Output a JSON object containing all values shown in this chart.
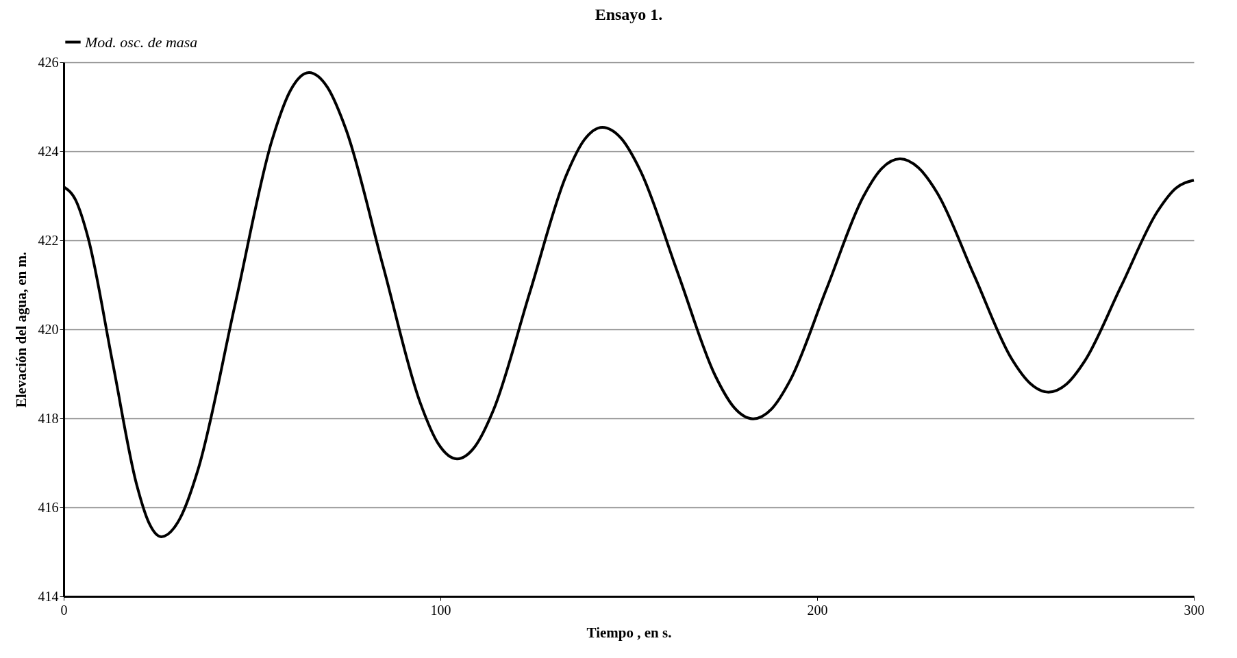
{
  "chart_data": {
    "type": "line",
    "title": "Ensayo 1.",
    "xlabel": "Tiempo , en s.",
    "ylabel": "Elevación del agua, en m.",
    "x": [
      0,
      3.2,
      6.5,
      12.95,
      19.4,
      22.7,
      25.9,
      30.8,
      35.7,
      45.5,
      55.3,
      60.2,
      65.1,
      70,
      74.9,
      84.75,
      94.6,
      99.5,
      104.4,
      109.2,
      114.05,
      123.7,
      133.35,
      138.2,
      143,
      148,
      153,
      163,
      173,
      178,
      183,
      187.9,
      192.75,
      202.5,
      212.25,
      217.1,
      222,
      226.9,
      231.85,
      241.7,
      251.55,
      256.5,
      261.4,
      266.2,
      271.05,
      280.7,
      290.35,
      295.2,
      300
    ],
    "series": [
      {
        "name": "Mod. osc. de masa",
        "color": "#000000",
        "values": [
          423.2,
          422.9,
          422.05,
          419.27,
          416.5,
          415.64,
          415.34,
          415.74,
          416.86,
          420.56,
          424.25,
          425.37,
          425.77,
          425.44,
          424.5,
          421.43,
          418.36,
          417.42,
          417.09,
          417.37,
          418.18,
          420.82,
          423.45,
          424.26,
          424.54,
          424.29,
          423.58,
          421.27,
          418.95,
          418.24,
          417.99,
          418.21,
          418.84,
          420.91,
          422.98,
          423.61,
          423.83,
          423.63,
          423.07,
          421.21,
          419.35,
          418.79,
          418.59,
          418.77,
          419.29,
          420.97,
          422.65,
          423.17,
          423.35
        ]
      }
    ],
    "xlim": [
      0,
      300
    ],
    "xticks": [
      0,
      100,
      200,
      300
    ],
    "ylim": [
      414,
      426
    ],
    "yticks": [
      414,
      416,
      418,
      420,
      422,
      424,
      426
    ],
    "grid": "y",
    "legend": "top",
    "marker": "none",
    "line_style": "solid"
  }
}
